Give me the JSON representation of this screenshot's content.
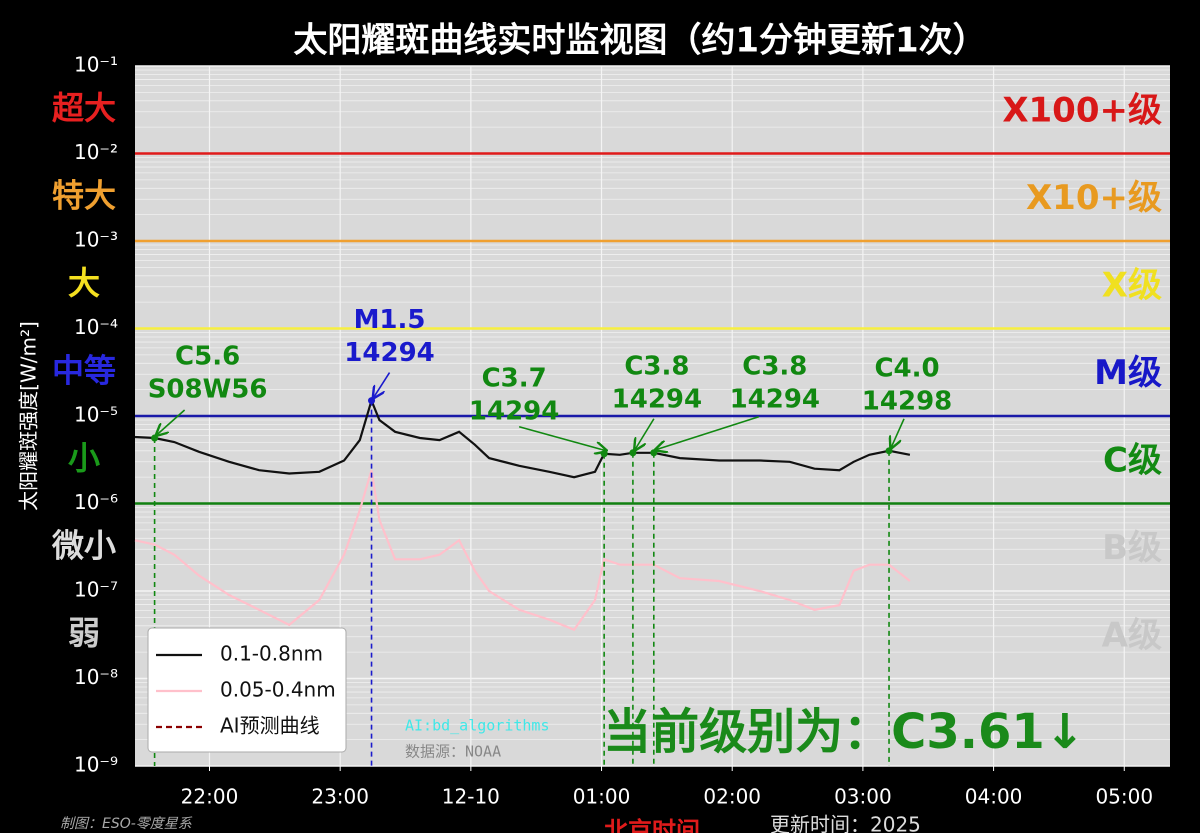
{
  "chart_data": {
    "type": "line",
    "title": "太阳耀斑曲线实时监视图（约1分钟更新1次）",
    "ylabel": "太阳耀斑强度[W/m²]",
    "xlabel": "北京时间",
    "y_log": true,
    "grid": true,
    "legend": "lower left",
    "x": [
      21.43,
      21.58,
      21.73,
      21.92,
      22.15,
      22.38,
      22.61,
      22.84,
      23.03,
      23.15,
      23.24,
      23.3,
      23.42,
      23.61,
      23.76,
      23.91,
      24.03,
      24.14,
      24.37,
      24.6,
      24.79,
      24.95,
      25.02,
      25.14,
      25.24,
      25.4,
      25.6,
      25.9,
      26.21,
      26.44,
      26.63,
      26.82,
      26.93,
      27.05,
      27.2,
      27.36
    ],
    "series": [
      {
        "name": "0.1-0.8nm",
        "color": "#111111",
        "dash": false,
        "values": [
          5.75e-06,
          5.6e-06,
          5.05e-06,
          3.9e-06,
          3e-06,
          2.4e-06,
          2.2e-06,
          2.3e-06,
          3.1e-06,
          5.3e-06,
          1.5e-05,
          9e-06,
          6.6e-06,
          5.6e-06,
          5.3e-06,
          6.6e-06,
          4.7e-06,
          3.3e-06,
          2.7e-06,
          2.3e-06,
          2e-06,
          2.3e-06,
          3.7e-06,
          3.6e-06,
          3.8e-06,
          3.8e-06,
          3.3e-06,
          3.1e-06,
          3.1e-06,
          3e-06,
          2.5e-06,
          2.4e-06,
          3e-06,
          3.6e-06,
          4e-06,
          3.6e-06
        ]
      },
      {
        "name": "0.05-0.4nm",
        "color": "#ffc0cb",
        "dash": false,
        "values": [
          3.8e-07,
          3.4e-07,
          2.6e-07,
          1.5e-07,
          9e-08,
          6.1e-08,
          4.1e-08,
          7.9e-08,
          2.6e-07,
          8.4e-07,
          2.4e-06,
          6.5e-07,
          2.3e-07,
          2.3e-07,
          2.6e-07,
          3.8e-07,
          1.7e-07,
          1e-07,
          6.1e-08,
          4.7e-08,
          3.6e-08,
          7.9e-08,
          2.3e-07,
          2e-07,
          2e-07,
          2e-07,
          1.4e-07,
          1.3e-07,
          1e-07,
          7.9e-08,
          6.1e-08,
          6.9e-08,
          1.7e-07,
          2e-07,
          2e-07,
          1.3e-07
        ]
      },
      {
        "name": "AI预测曲线",
        "color": "#8b0000",
        "dash": true,
        "values": [
          null,
          null,
          null,
          null,
          null,
          null,
          null,
          null,
          null,
          null,
          null,
          null,
          null,
          null,
          null,
          null,
          null,
          null,
          null,
          null,
          null,
          null,
          null,
          null,
          null,
          null,
          null,
          null,
          null,
          null,
          null,
          null,
          null,
          null,
          null,
          null
        ]
      }
    ],
    "xlim": [
      21.43,
      29.35
    ],
    "xticks": [
      {
        "value": 22,
        "label": "22:00"
      },
      {
        "value": 23,
        "label": "23:00"
      },
      {
        "value": 24,
        "label": "12-10"
      },
      {
        "value": 25,
        "label": "01:00"
      },
      {
        "value": 26,
        "label": "02:00"
      },
      {
        "value": 27,
        "label": "03:00"
      },
      {
        "value": 28,
        "label": "04:00"
      },
      {
        "value": 29,
        "label": "05:00"
      }
    ],
    "ylim": [
      1e-09,
      0.1
    ],
    "yticks": [
      {
        "value": 1e-09,
        "label": "10⁻⁹"
      },
      {
        "value": 1e-08,
        "label": "10⁻⁸"
      },
      {
        "value": 1e-07,
        "label": "10⁻⁷"
      },
      {
        "value": 1e-06,
        "label": "10⁻⁶"
      },
      {
        "value": 1e-05,
        "label": "10⁻⁵"
      },
      {
        "value": 0.0001,
        "label": "10⁻⁴"
      },
      {
        "value": 0.001,
        "label": "10⁻³"
      },
      {
        "value": 0.01,
        "label": "10⁻²"
      },
      {
        "value": 0.1,
        "label": "10⁻¹"
      }
    ],
    "thresholds": [
      {
        "value": 0.01,
        "color": "#e01b1b"
      },
      {
        "value": 0.001,
        "color": "#f0a030"
      },
      {
        "value": 0.0001,
        "color": "#f7ef40"
      },
      {
        "value": 1e-05,
        "color": "#1a1aa8"
      },
      {
        "value": 1e-06,
        "color": "#108010"
      }
    ],
    "level_names": [
      {
        "text": "超大",
        "color": "#e82020"
      },
      {
        "text": "特大",
        "color": "#f0a030"
      },
      {
        "text": "大",
        "color": "#f5e020"
      },
      {
        "text": "中等",
        "color": "#2828e0"
      },
      {
        "text": "小",
        "color": "#1a9a1a"
      },
      {
        "text": "微小",
        "color": "#dddddd"
      },
      {
        "text": "弱",
        "color": "#cccccc"
      }
    ],
    "class_labels": [
      {
        "text": "X100+级",
        "color": "#d81818"
      },
      {
        "text": "X10+级",
        "color": "#e89a20"
      },
      {
        "text": "X级",
        "color": "#f0e020"
      },
      {
        "text": "M级",
        "color": "#1818c8"
      },
      {
        "text": "C级",
        "color": "#138a13"
      },
      {
        "text": "B级",
        "color": "#c8c8c8"
      },
      {
        "text": "A级",
        "color": "#c8c8c8"
      }
    ],
    "annotations": [
      {
        "x": 21.58,
        "y": 5.6e-06,
        "label": [
          "C5.6",
          "S08W56"
        ],
        "color": "#118811"
      },
      {
        "x": 23.24,
        "y": 1.5e-05,
        "label": [
          "M1.5",
          "14294"
        ],
        "color": "#1a1acc"
      },
      {
        "x": 25.02,
        "y": 3.7e-06,
        "label": [
          "C3.7",
          "14294"
        ],
        "color": "#118811"
      },
      {
        "x": 25.24,
        "y": 3.8e-06,
        "label": [
          "C3.8",
          "14294"
        ],
        "color": "#118811"
      },
      {
        "x": 25.4,
        "y": 3.8e-06,
        "label": [
          "C3.8",
          "14294"
        ],
        "color": "#118811"
      },
      {
        "x": 27.2,
        "y": 4e-06,
        "label": [
          "C4.0",
          "14298"
        ],
        "color": "#118811"
      }
    ]
  },
  "status": {
    "current_level": "当前级别为：C3.61↓",
    "credit": "AI:bd_algorithms",
    "source": "数据源：NOAA"
  },
  "footer": {
    "author": "制图：ESO-零度星系",
    "update": "更新时间：2025"
  }
}
